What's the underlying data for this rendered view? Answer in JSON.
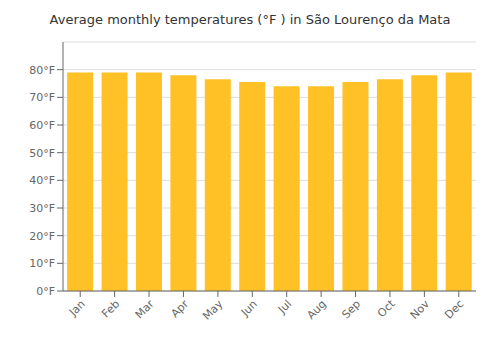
{
  "chart_data": {
    "type": "bar",
    "title": "Average monthly temperatures (°F ) in São Lourenço da Mata",
    "categories": [
      "Jan",
      "Feb",
      "Mar",
      "Apr",
      "May",
      "Jun",
      "Jul",
      "Aug",
      "Sep",
      "Oct",
      "Nov",
      "Dec"
    ],
    "values": [
      79,
      79,
      79,
      78,
      76.5,
      75.5,
      74,
      74,
      75.5,
      76.5,
      78,
      79
    ],
    "color": "#FFC125",
    "ylim": [
      0,
      90
    ],
    "yticks": [
      {
        "value": 0,
        "label": "0°F"
      },
      {
        "value": 10,
        "label": "10°F"
      },
      {
        "value": 20,
        "label": "20°F"
      },
      {
        "value": 30,
        "label": "30°F"
      },
      {
        "value": 40,
        "label": "40°F"
      },
      {
        "value": 50,
        "label": "50°F"
      },
      {
        "value": 60,
        "label": "60°F"
      },
      {
        "value": 70,
        "label": "70°F"
      },
      {
        "value": 80,
        "label": "80°F"
      }
    ],
    "grid": true
  }
}
